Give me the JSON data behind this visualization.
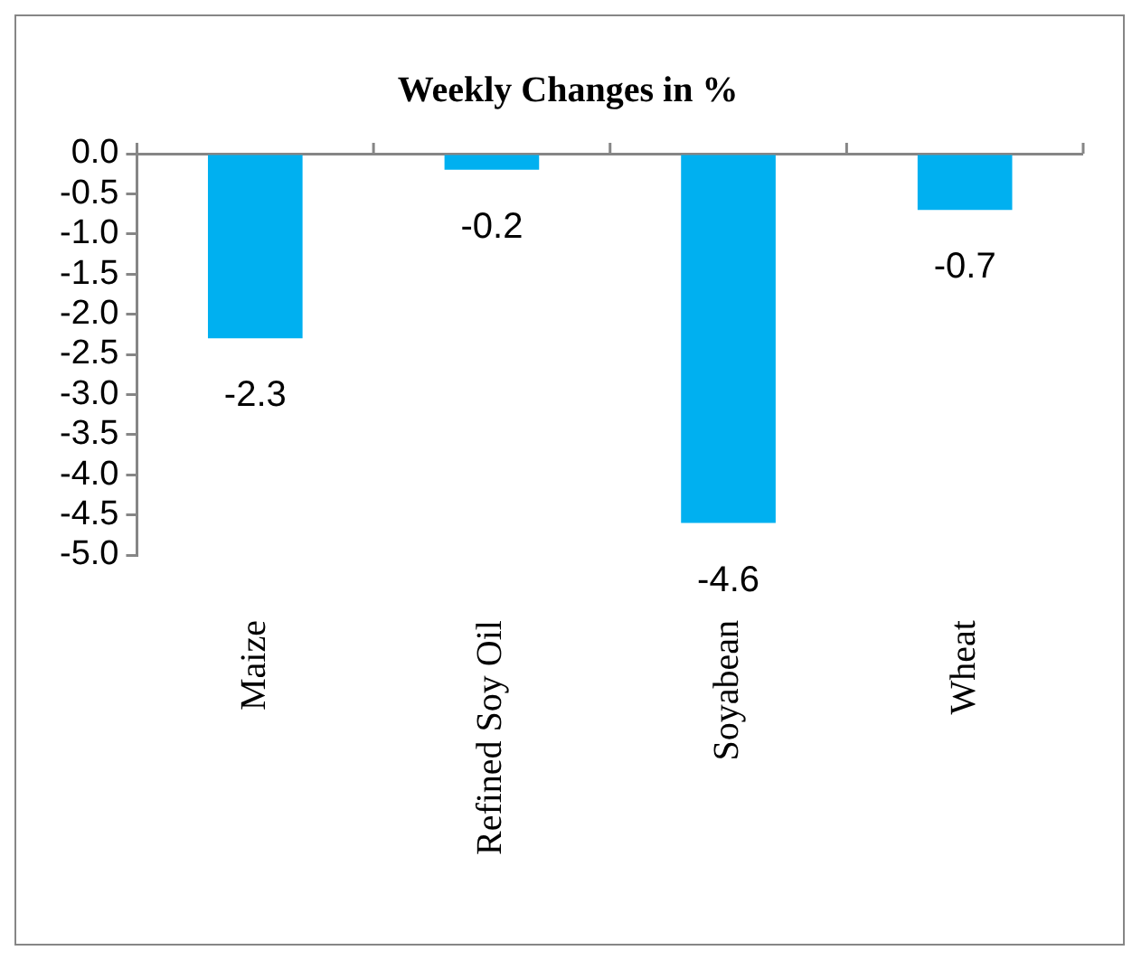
{
  "chart_data": {
    "type": "bar",
    "title": "Weekly Changes in %",
    "categories": [
      "Maize",
      "Refined Soy Oil",
      "Soyabean",
      "Wheat"
    ],
    "values": [
      -2.3,
      -0.2,
      -4.6,
      -0.7
    ],
    "color": "#00b0f0",
    "ylim": [
      -5,
      0
    ],
    "yticks": [
      {
        "value": 0,
        "label": "0.0"
      },
      {
        "value": -0.5,
        "label": "-0.5"
      },
      {
        "value": -1,
        "label": "-1.0"
      },
      {
        "value": -1.5,
        "label": "-1.5"
      },
      {
        "value": -2,
        "label": "-2.0"
      },
      {
        "value": -2.5,
        "label": "-2.5"
      },
      {
        "value": -3,
        "label": "-3.0"
      },
      {
        "value": -3.5,
        "label": "-3.5"
      },
      {
        "value": -4,
        "label": "-4.0"
      },
      {
        "value": -4.5,
        "label": "-4.5"
      },
      {
        "value": -5,
        "label": "-5.0"
      }
    ],
    "grid": false,
    "data_labels": true
  }
}
